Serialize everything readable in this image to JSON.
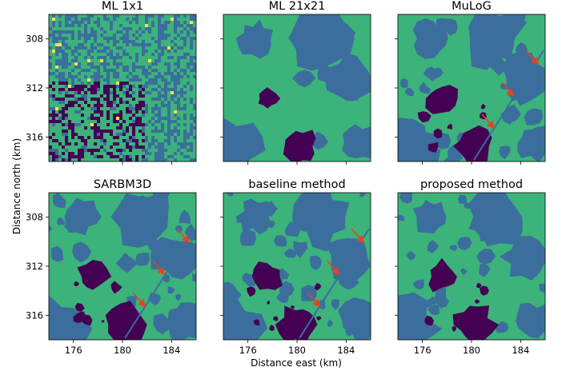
{
  "figure": {
    "xlabel": "Distance east (km)",
    "ylabel": "Distance north (km)"
  },
  "palette": {
    "dark_purple": "#440154",
    "blue": "#3b6e9c",
    "green": "#3bb37a",
    "yellow": "#f0e442",
    "arrow_red": "#e8421e"
  },
  "chart_data": [
    {
      "type": "heatmap",
      "title": "ML 1x1",
      "row": 0,
      "col": 0,
      "style": "noisy",
      "arrows": 0,
      "x_ticks": [
        176,
        180,
        184
      ],
      "y_ticks": [
        308,
        312,
        316
      ],
      "show_xticklabels": false,
      "show_yticklabels": true
    },
    {
      "type": "heatmap",
      "title": "ML 21x21",
      "row": 0,
      "col": 1,
      "style": "smooth",
      "arrows": 0,
      "x_ticks": [
        176,
        180,
        184
      ],
      "y_ticks": [
        308,
        312,
        316
      ],
      "show_xticklabels": false,
      "show_yticklabels": false
    },
    {
      "type": "heatmap",
      "title": "MuLoG",
      "row": 0,
      "col": 2,
      "style": "detailed",
      "arrows": 3,
      "x_ticks": [
        176,
        180,
        184
      ],
      "y_ticks": [
        308,
        312,
        316
      ],
      "show_xticklabels": false,
      "show_yticklabels": false
    },
    {
      "type": "heatmap",
      "title": "SARBM3D",
      "row": 1,
      "col": 0,
      "style": "detailed",
      "arrows": 3,
      "x_ticks": [
        176,
        180,
        184
      ],
      "y_ticks": [
        308,
        312,
        316
      ],
      "show_xticklabels": true,
      "show_yticklabels": true
    },
    {
      "type": "heatmap",
      "title": "baseline method",
      "row": 1,
      "col": 1,
      "style": "detailed",
      "arrows": 3,
      "x_ticks": [
        176,
        180,
        184
      ],
      "y_ticks": [
        308,
        312,
        316
      ],
      "show_xticklabels": true,
      "show_yticklabels": false
    },
    {
      "type": "heatmap",
      "title": "proposed method",
      "row": 1,
      "col": 2,
      "style": "clean",
      "arrows": 0,
      "x_ticks": [
        176,
        180,
        184
      ],
      "y_ticks": [
        308,
        312,
        316
      ],
      "show_xticklabels": true,
      "show_yticklabels": false
    }
  ]
}
